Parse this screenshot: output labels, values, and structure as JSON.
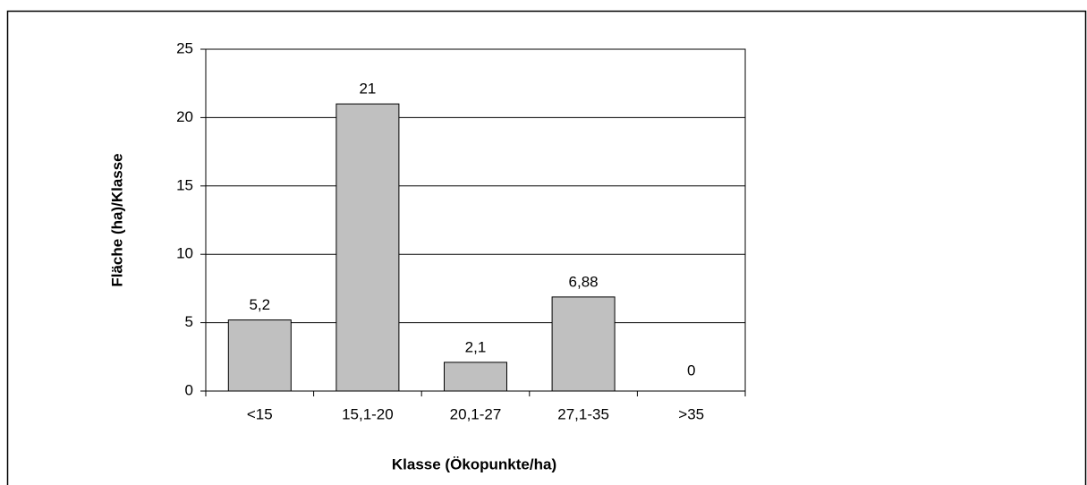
{
  "chart_data": {
    "type": "bar",
    "categories": [
      "<15",
      "15,1-20",
      "20,1-27",
      "27,1-35",
      ">35"
    ],
    "values": [
      5.2,
      21,
      2.1,
      6.88,
      0
    ],
    "value_labels": [
      "5,2",
      "21",
      "2,1",
      "6,88",
      "0"
    ],
    "color": "#c0c0c0",
    "xlabel": "Klasse (Ökopunkte/ha)",
    "ylabel": "Fläche (ha)/Klasse",
    "ylim": [
      0,
      25
    ],
    "yticks": [
      0,
      5,
      10,
      15,
      20,
      25
    ],
    "grid": true
  }
}
